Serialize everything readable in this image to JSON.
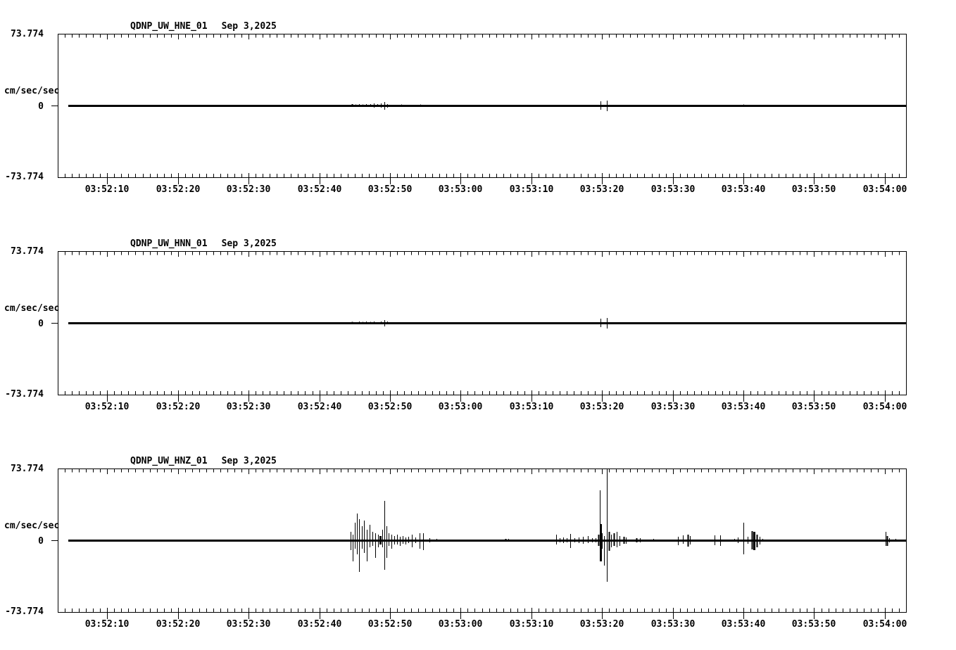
{
  "colors": {
    "background": "#ffffff",
    "foreground": "#000000"
  },
  "chart_data": [
    {
      "type": "line",
      "title": "QDNP_UW_HNE_01",
      "date_label": "Sep 3,2025",
      "ylabel": "cm/sec/sec",
      "y_tick_labels": [
        "73.774",
        "0",
        "-73.774"
      ],
      "ylim": [
        -73.774,
        73.774
      ],
      "x_window_seconds": 120,
      "x_tick_seconds": [
        7,
        17,
        27,
        37,
        47,
        57,
        67,
        77,
        87,
        97,
        107,
        117
      ],
      "x_tick_labels": [
        "03:52:10",
        "03:52:20",
        "03:52:30",
        "03:52:40",
        "03:52:50",
        "03:53:00",
        "03:53:10",
        "03:53:20",
        "03:53:30",
        "03:53:40",
        "03:53:50",
        "03:54:00"
      ],
      "grid": false,
      "baseline_value": 0,
      "spikes": [
        [
          41.6,
          1.4,
          1.4,
          2
        ],
        [
          42.1,
          1.1,
          1.1
        ],
        [
          42.6,
          1.4,
          1.4
        ],
        [
          43.1,
          1.1,
          1.1
        ],
        [
          43.6,
          1.4,
          1.4
        ],
        [
          44.2,
          1.4,
          1.4
        ],
        [
          44.7,
          2.2,
          2.2
        ],
        [
          45.2,
          1.4,
          1.4
        ],
        [
          45.7,
          2.2,
          2.2
        ],
        [
          46.2,
          3.6,
          4.3
        ],
        [
          46.6,
          1.4,
          2.2
        ],
        [
          48.6,
          1.1,
          1.1
        ],
        [
          51.3,
          1.1,
          1.1
        ],
        [
          55.3,
          0.7,
          0.7
        ],
        [
          76.8,
          4.3,
          4.3
        ],
        [
          77.7,
          5.1,
          5.8
        ],
        [
          97.0,
          1.1,
          0.7
        ],
        [
          117.3,
          0.7,
          1.1
        ]
      ]
    },
    {
      "type": "line",
      "title": "QDNP_UW_HNN_01",
      "date_label": "Sep 3,2025",
      "ylabel": "cm/sec/sec",
      "y_tick_labels": [
        "73.774",
        "0",
        "-73.774"
      ],
      "ylim": [
        -73.774,
        73.774
      ],
      "x_window_seconds": 120,
      "x_tick_seconds": [
        7,
        17,
        27,
        37,
        47,
        57,
        67,
        77,
        87,
        97,
        107,
        117
      ],
      "x_tick_labels": [
        "03:52:10",
        "03:52:20",
        "03:52:30",
        "03:52:40",
        "03:52:50",
        "03:53:00",
        "03:53:10",
        "03:53:20",
        "03:53:30",
        "03:53:40",
        "03:53:50",
        "03:54:00"
      ],
      "grid": false,
      "baseline_value": 0,
      "spikes": [
        [
          41.6,
          1.1,
          1.1,
          2
        ],
        [
          42.6,
          1.4,
          1.4
        ],
        [
          43.1,
          1.1,
          1.1
        ],
        [
          43.6,
          1.4,
          1.4
        ],
        [
          44.2,
          1.1,
          1.1
        ],
        [
          44.7,
          1.4,
          1.4
        ],
        [
          45.7,
          1.4,
          1.4
        ],
        [
          46.2,
          2.9,
          3.6
        ],
        [
          46.6,
          1.4,
          1.4
        ],
        [
          48.6,
          0.7,
          0.7
        ],
        [
          51.3,
          0.7,
          0.7
        ],
        [
          64.8,
          0.7,
          0.7
        ],
        [
          76.8,
          4.3,
          4.3
        ],
        [
          77.7,
          5.1,
          5.8
        ],
        [
          95.8,
          0.7,
          0.7
        ]
      ]
    },
    {
      "type": "line",
      "title": "QDNP_UW_HNZ_01",
      "date_label": "Sep 3,2025",
      "ylabel": "cm/sec/sec",
      "y_tick_labels": [
        "73.774",
        "0",
        "-73.774"
      ],
      "ylim": [
        -73.774,
        73.774
      ],
      "x_window_seconds": 120,
      "x_tick_seconds": [
        7,
        17,
        27,
        37,
        47,
        57,
        67,
        77,
        87,
        97,
        107,
        117
      ],
      "x_tick_labels": [
        "03:52:10",
        "03:52:20",
        "03:52:30",
        "03:52:40",
        "03:52:50",
        "03:53:00",
        "03:53:10",
        "03:53:20",
        "03:53:30",
        "03:53:40",
        "03:53:50",
        "03:54:00"
      ],
      "grid": false,
      "baseline_value": 0,
      "spikes": [
        [
          36.6,
          0.7,
          0.7
        ],
        [
          37.6,
          0.7,
          0.7
        ],
        [
          38.7,
          0.7,
          0.7
        ],
        [
          41.4,
          8.7,
          10.1
        ],
        [
          41.7,
          5.8,
          21.7
        ],
        [
          42.0,
          18.1,
          8.7
        ],
        [
          42.3,
          27.5,
          14.5
        ],
        [
          42.6,
          21.7,
          32.5
        ],
        [
          43.0,
          14.5,
          8.7
        ],
        [
          43.3,
          20.3,
          13.0
        ],
        [
          43.7,
          10.8,
          21.7
        ],
        [
          44.1,
          15.9,
          7.2
        ],
        [
          44.5,
          8.7,
          5.8
        ],
        [
          44.9,
          7.2,
          18.1
        ],
        [
          45.3,
          5.8,
          7.2
        ],
        [
          45.6,
          4.3,
          4.3,
          3
        ],
        [
          45.9,
          10.8,
          7.2
        ],
        [
          46.2,
          40.5,
          30.4
        ],
        [
          46.5,
          14.5,
          18.1
        ],
        [
          46.8,
          7.2,
          5.8
        ],
        [
          47.2,
          5.8,
          8.7
        ],
        [
          47.6,
          4.3,
          4.3
        ],
        [
          48.0,
          5.8,
          4.3
        ],
        [
          48.4,
          3.6,
          5.8
        ],
        [
          48.8,
          4.3,
          3.6
        ],
        [
          49.2,
          2.9,
          4.3
        ],
        [
          49.6,
          3.6,
          2.9
        ],
        [
          50.1,
          5.8,
          7.2
        ],
        [
          50.6,
          2.9,
          2.9
        ],
        [
          51.2,
          7.2,
          8.7
        ],
        [
          51.7,
          7.2,
          10.1
        ],
        [
          52.6,
          2.2,
          2.2
        ],
        [
          53.6,
          1.4,
          1.4
        ],
        [
          63.3,
          1.4,
          1.4,
          2
        ],
        [
          63.7,
          1.4,
          1.4
        ],
        [
          70.5,
          5.8,
          4.3
        ],
        [
          71.0,
          2.2,
          2.2
        ],
        [
          71.5,
          2.9,
          2.9
        ],
        [
          72.0,
          2.2,
          2.2
        ],
        [
          72.5,
          6.5,
          8.0
        ],
        [
          73.1,
          2.2,
          2.2
        ],
        [
          73.7,
          2.9,
          2.9
        ],
        [
          74.3,
          3.6,
          3.6
        ],
        [
          75.0,
          4.3,
          2.9
        ],
        [
          75.6,
          2.2,
          2.2
        ],
        [
          76.1,
          2.2,
          2.2
        ],
        [
          76.5,
          5.8,
          5.8,
          2
        ],
        [
          76.7,
          51.4,
          21.7
        ],
        [
          76.8,
          16.6,
          21.7,
          3
        ],
        [
          77.0,
          7.2,
          8.7
        ],
        [
          77.3,
          4.3,
          26.0
        ],
        [
          77.7,
          73.7,
          42.7
        ],
        [
          78.0,
          8.7,
          10.8,
          2
        ],
        [
          78.3,
          5.8,
          7.2
        ],
        [
          78.7,
          7.2,
          5.8,
          2
        ],
        [
          79.1,
          8.7,
          7.2
        ],
        [
          79.5,
          4.3,
          5.8
        ],
        [
          80.1,
          3.6,
          3.6,
          2
        ],
        [
          80.4,
          2.9,
          3.6
        ],
        [
          81.9,
          2.2,
          2.2,
          2
        ],
        [
          82.4,
          2.2,
          2.2
        ],
        [
          84.2,
          1.4,
          1.4
        ],
        [
          87.7,
          3.6,
          5.1
        ],
        [
          88.4,
          5.1,
          3.6
        ],
        [
          89.1,
          5.8,
          6.5,
          2
        ],
        [
          89.4,
          4.3,
          4.3
        ],
        [
          92.9,
          5.1,
          5.1
        ],
        [
          93.7,
          5.1,
          5.8
        ],
        [
          95.7,
          1.4,
          1.4
        ],
        [
          96.2,
          2.9,
          2.9
        ],
        [
          97.0,
          18.1,
          14.5
        ],
        [
          97.6,
          3.6,
          3.6
        ],
        [
          98.2,
          9.4,
          9.4,
          2
        ],
        [
          98.5,
          8.7,
          10.1,
          3
        ],
        [
          98.9,
          5.8,
          7.2,
          2
        ],
        [
          99.3,
          3.6,
          4.3
        ],
        [
          99.7,
          1.4,
          1.4
        ],
        [
          117.1,
          8.7,
          5.8
        ],
        [
          117.3,
          4.3,
          5.8,
          2
        ],
        [
          117.6,
          2.2,
          2.2
        ],
        [
          118.5,
          1.4,
          1.4
        ]
      ]
    }
  ]
}
